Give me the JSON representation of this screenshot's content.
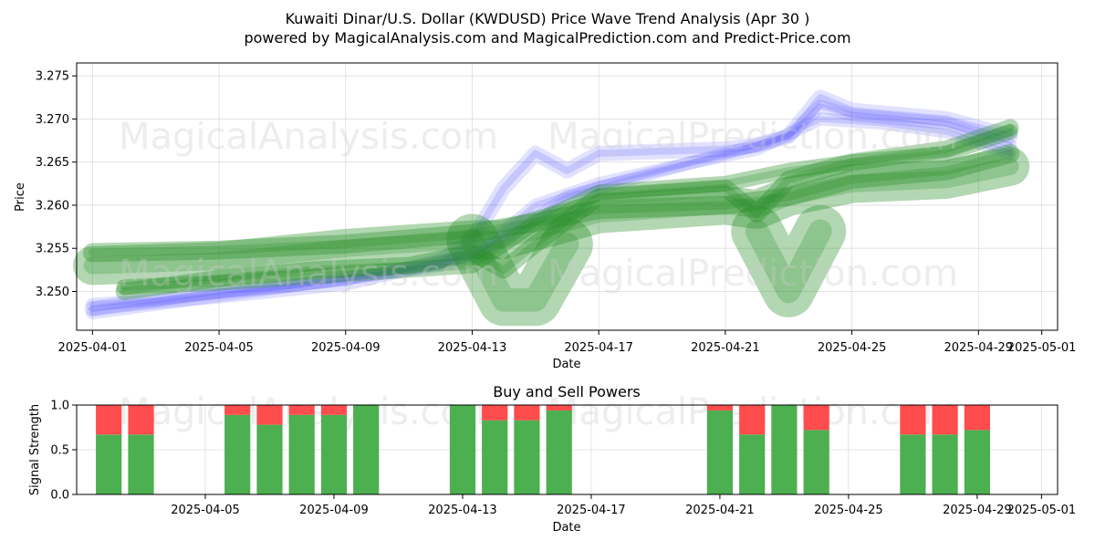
{
  "title_line1": "Kuwaiti Dinar/U.S. Dollar (KWDUSD) Price Wave Trend Analysis (Apr 30 )",
  "title_line2": "powered by MagicalAnalysis.com and MagicalPrediction.com and Predict-Price.com",
  "watermarks": [
    "MagicalAnalysis.com",
    "MagicalPrediction.com"
  ],
  "colors": {
    "buy": "#4caf50",
    "sell": "#ff4c4c",
    "green_band": "#228b22",
    "blue_band": "#4a4aff",
    "grid": "#dddddd"
  },
  "chart_data": [
    {
      "type": "area",
      "title": "",
      "xlabel": "Date",
      "ylabel": "Price",
      "xlim": [
        "2025-03-31T12:00",
        "2025-05-01T12:00"
      ],
      "ylim": [
        3.2455,
        3.2765
      ],
      "x_ticks": [
        "2025-04-01",
        "2025-04-05",
        "2025-04-09",
        "2025-04-13",
        "2025-04-17",
        "2025-04-21",
        "2025-04-25",
        "2025-04-29",
        "2025-05-01"
      ],
      "y_ticks": [
        3.25,
        3.255,
        3.26,
        3.265,
        3.27,
        3.275
      ],
      "grid": true,
      "series": [
        {
          "color": "green",
          "x": [
            "2025-04-01",
            "2025-04-05",
            "2025-04-09",
            "2025-04-13",
            "2025-04-14",
            "2025-04-15",
            "2025-04-17",
            "2025-04-21",
            "2025-04-22",
            "2025-04-23",
            "2025-04-25",
            "2025-04-28",
            "2025-04-30"
          ],
          "y": [
            3.2545,
            3.2548,
            3.2555,
            3.2567,
            3.2574,
            3.258,
            3.2595,
            3.26,
            3.2605,
            3.261,
            3.263,
            3.264,
            3.266
          ],
          "width": 0.0022
        },
        {
          "color": "green",
          "x": [
            "2025-04-01",
            "2025-04-05",
            "2025-04-09",
            "2025-04-13",
            "2025-04-14",
            "2025-04-15",
            "2025-04-17",
            "2025-04-21",
            "2025-04-22",
            "2025-04-23",
            "2025-04-25",
            "2025-04-28",
            "2025-04-30"
          ],
          "y": [
            3.253,
            3.2535,
            3.255,
            3.256,
            3.256,
            3.257,
            3.259,
            3.26,
            3.2595,
            3.261,
            3.2625,
            3.263,
            3.2645
          ],
          "width": 0.0045
        },
        {
          "color": "green",
          "x": [
            "2025-04-02",
            "2025-04-05",
            "2025-04-09",
            "2025-04-13",
            "2025-04-15",
            "2025-04-17",
            "2025-04-21",
            "2025-04-23",
            "2025-04-25",
            "2025-04-28",
            "2025-04-30"
          ],
          "y": [
            3.2505,
            3.251,
            3.252,
            3.253,
            3.258,
            3.2615,
            3.2625,
            3.264,
            3.265,
            3.266,
            3.2685
          ],
          "width": 0.0018
        },
        {
          "color": "green",
          "x": [
            "2025-04-02",
            "2025-04-05",
            "2025-04-08",
            "2025-04-11",
            "2025-04-13",
            "2025-04-14",
            "2025-04-15",
            "2025-04-17",
            "2025-04-21",
            "2025-04-22",
            "2025-04-23",
            "2025-04-25",
            "2025-04-28",
            "2025-04-30"
          ],
          "y": [
            3.25,
            3.2515,
            3.2525,
            3.253,
            3.2545,
            3.2525,
            3.2555,
            3.261,
            3.262,
            3.259,
            3.263,
            3.265,
            3.2665,
            3.269
          ],
          "width": 0.002
        },
        {
          "color": "green",
          "x": [
            "2025-04-13",
            "2025-04-14",
            "2025-04-15",
            "2025-04-16"
          ],
          "y": [
            3.256,
            3.249,
            3.249,
            3.2555
          ],
          "width": 0.006
        },
        {
          "color": "green",
          "x": [
            "2025-04-22",
            "2025-04-23",
            "2025-04-24"
          ],
          "y": [
            3.257,
            3.25,
            3.257
          ],
          "width": 0.006
        },
        {
          "color": "blue",
          "x": [
            "2025-04-01",
            "2025-04-02",
            "2025-04-05",
            "2025-04-09",
            "2025-04-12",
            "2025-04-13",
            "2025-04-14",
            "2025-04-15",
            "2025-04-16",
            "2025-04-17",
            "2025-04-21",
            "2025-04-22",
            "2025-04-23",
            "2025-04-24",
            "2025-04-25",
            "2025-04-28",
            "2025-04-30"
          ],
          "y": [
            3.248,
            3.2485,
            3.2495,
            3.251,
            3.2535,
            3.256,
            3.262,
            3.266,
            3.264,
            3.266,
            3.2665,
            3.267,
            3.268,
            3.2725,
            3.271,
            3.27,
            3.268
          ],
          "width": 0.0018
        },
        {
          "color": "blue",
          "x": [
            "2025-04-01",
            "2025-04-03",
            "2025-04-05",
            "2025-04-07",
            "2025-04-09",
            "2025-04-12",
            "2025-04-14",
            "2025-04-16",
            "2025-04-19",
            "2025-04-21",
            "2025-04-23",
            "2025-04-24",
            "2025-04-25",
            "2025-04-28",
            "2025-04-30"
          ],
          "y": [
            3.2485,
            3.249,
            3.25,
            3.2505,
            3.2515,
            3.253,
            3.256,
            3.261,
            3.264,
            3.266,
            3.268,
            3.2715,
            3.2705,
            3.2695,
            3.267
          ],
          "width": 0.0015
        },
        {
          "color": "blue",
          "x": [
            "2025-04-01",
            "2025-04-04",
            "2025-04-07",
            "2025-04-10",
            "2025-04-13",
            "2025-04-15",
            "2025-04-17",
            "2025-04-20",
            "2025-04-22",
            "2025-04-24",
            "2025-04-26",
            "2025-04-28",
            "2025-04-30"
          ],
          "y": [
            3.2475,
            3.249,
            3.2505,
            3.252,
            3.254,
            3.26,
            3.2625,
            3.265,
            3.2665,
            3.27,
            3.2695,
            3.2685,
            3.266
          ],
          "width": 0.0015
        }
      ]
    },
    {
      "type": "bar",
      "title": "Buy and Sell Powers",
      "xlabel": "Date",
      "ylabel": "Signal Strength",
      "xlim": [
        "2025-04-01T00:00",
        "2025-05-01T12:00"
      ],
      "ylim": [
        0,
        1
      ],
      "y_ticks": [
        "0.0",
        "0.5",
        "1.0"
      ],
      "x_ticks": [
        "2025-04-05",
        "2025-04-09",
        "2025-04-13",
        "2025-04-17",
        "2025-04-21",
        "2025-04-25",
        "2025-04-29",
        "2025-05-01"
      ],
      "grid": true,
      "series": [
        {
          "name": "Buy",
          "x": [
            "2025-04-02",
            "2025-04-03",
            "2025-04-06",
            "2025-04-07",
            "2025-04-08",
            "2025-04-09",
            "2025-04-10",
            "2025-04-13",
            "2025-04-14",
            "2025-04-15",
            "2025-04-16",
            "2025-04-21",
            "2025-04-22",
            "2025-04-23",
            "2025-04-24",
            "2025-04-27",
            "2025-04-28",
            "2025-04-29"
          ],
          "values": [
            0.67,
            0.67,
            0.89,
            0.78,
            0.89,
            0.89,
            1.0,
            1.0,
            0.83,
            0.83,
            0.94,
            0.94,
            0.67,
            1.0,
            0.72,
            0.67,
            0.67,
            0.72
          ]
        },
        {
          "name": "Sell",
          "x": [
            "2025-04-02",
            "2025-04-03",
            "2025-04-06",
            "2025-04-07",
            "2025-04-08",
            "2025-04-09",
            "2025-04-10",
            "2025-04-13",
            "2025-04-14",
            "2025-04-15",
            "2025-04-16",
            "2025-04-21",
            "2025-04-22",
            "2025-04-23",
            "2025-04-24",
            "2025-04-27",
            "2025-04-28",
            "2025-04-29"
          ],
          "values": [
            0.33,
            0.33,
            0.11,
            0.22,
            0.11,
            0.11,
            0.0,
            0.0,
            0.17,
            0.17,
            0.06,
            0.06,
            0.33,
            0.0,
            0.28,
            0.33,
            0.33,
            0.28
          ]
        }
      ]
    }
  ]
}
